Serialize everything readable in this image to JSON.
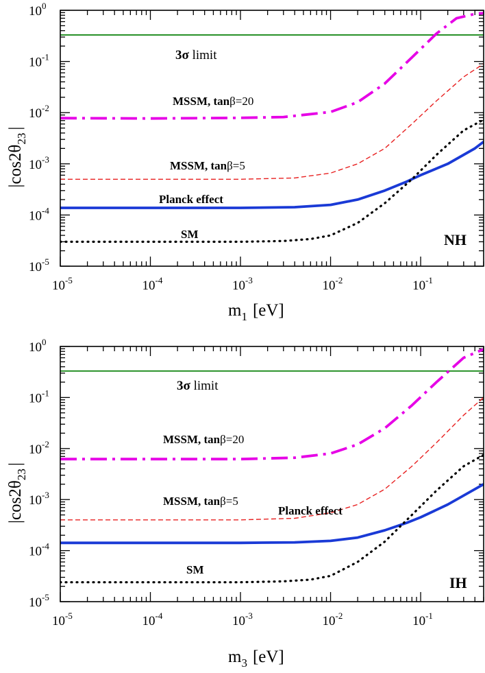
{
  "chart_data": [
    {
      "type": "line",
      "xscale": "log",
      "yscale": "log",
      "xlim": [
        1e-05,
        0.5
      ],
      "ylim": [
        1e-05,
        1
      ],
      "xlabel": {
        "main": "m",
        "sub": "1",
        "unit": "[eV]"
      },
      "ylabel": {
        "pre": "|cos2",
        "theta": "θ",
        "sub": "23",
        "post": "|"
      },
      "x_ticks": [
        {
          "base": "10",
          "exp": "-5"
        },
        {
          "base": "10",
          "exp": "-4"
        },
        {
          "base": "10",
          "exp": "-3"
        },
        {
          "base": "10",
          "exp": "-2"
        },
        {
          "base": "10",
          "exp": "-1"
        }
      ],
      "y_ticks": [
        {
          "base": "10",
          "exp": "-5"
        },
        {
          "base": "10",
          "exp": "-4"
        },
        {
          "base": "10",
          "exp": "-3"
        },
        {
          "base": "10",
          "exp": "-2"
        },
        {
          "base": "10",
          "exp": "-1"
        },
        {
          "base": "10",
          "exp": "0"
        }
      ],
      "tag": "NH",
      "limit": {
        "value": 0.33,
        "color": "#1a8a1a",
        "label_bold": "3σ",
        "label_rest": " limit"
      },
      "series": [
        {
          "key": "mssm20",
          "color": "#e600e6",
          "style": "dashdot",
          "width": 3.8,
          "x": [
            1e-05,
            0.0001,
            0.001,
            0.003,
            0.01,
            0.02,
            0.04,
            0.08,
            0.15,
            0.25,
            0.4,
            0.5
          ],
          "y": [
            0.0078,
            0.0077,
            0.0079,
            0.0082,
            0.0103,
            0.016,
            0.037,
            0.12,
            0.35,
            0.7,
            0.85,
            0.88
          ]
        },
        {
          "key": "mssm5",
          "color": "#e82020",
          "style": "dashed",
          "width": 1.4,
          "x": [
            1e-05,
            0.0001,
            0.001,
            0.004,
            0.01,
            0.02,
            0.04,
            0.08,
            0.15,
            0.3,
            0.5
          ],
          "y": [
            0.0005,
            0.0005,
            0.0005,
            0.00053,
            0.00066,
            0.001,
            0.002,
            0.006,
            0.017,
            0.05,
            0.09
          ]
        },
        {
          "key": "planck",
          "color": "#1a3ad6",
          "style": "solid",
          "width": 3.8,
          "x": [
            1e-05,
            0.0001,
            0.001,
            0.004,
            0.01,
            0.02,
            0.04,
            0.07,
            0.1,
            0.2,
            0.4,
            0.5
          ],
          "y": [
            0.000138,
            0.000138,
            0.000138,
            0.000142,
            0.000158,
            0.0002,
            0.0003,
            0.00045,
            0.0006,
            0.001,
            0.002,
            0.0027
          ]
        },
        {
          "key": "sm",
          "color": "#000000",
          "style": "dotted",
          "width": 3.2,
          "x": [
            1e-05,
            0.0001,
            0.001,
            0.003,
            0.006,
            0.01,
            0.02,
            0.04,
            0.08,
            0.15,
            0.3,
            0.5
          ],
          "y": [
            3e-05,
            3e-05,
            3e-05,
            3.1e-05,
            3.4e-05,
            4e-05,
            7e-05,
            0.00017,
            0.0005,
            0.0015,
            0.0045,
            0.0073
          ]
        }
      ],
      "annotations": [
        {
          "key": "mssm20",
          "bold": "MSSM, tan",
          "greek": "β",
          "rest": "=20"
        },
        {
          "key": "mssm5",
          "bold": "MSSM, tan",
          "greek": "β",
          "rest": "=5"
        },
        {
          "key": "planck",
          "bold": "Planck effect",
          "greek": "",
          "rest": ""
        },
        {
          "key": "sm",
          "bold": "SM",
          "greek": "",
          "rest": ""
        }
      ]
    },
    {
      "type": "line",
      "xscale": "log",
      "yscale": "log",
      "xlim": [
        1e-05,
        0.5
      ],
      "ylim": [
        1e-05,
        1
      ],
      "xlabel": {
        "main": "m",
        "sub": "3",
        "unit": "[eV]"
      },
      "ylabel": {
        "pre": "|cos2",
        "theta": "θ",
        "sub": "23",
        "post": "|"
      },
      "x_ticks": [
        {
          "base": "10",
          "exp": "-5"
        },
        {
          "base": "10",
          "exp": "-4"
        },
        {
          "base": "10",
          "exp": "-3"
        },
        {
          "base": "10",
          "exp": "-2"
        },
        {
          "base": "10",
          "exp": "-1"
        }
      ],
      "y_ticks": [
        {
          "base": "10",
          "exp": "-5"
        },
        {
          "base": "10",
          "exp": "-4"
        },
        {
          "base": "10",
          "exp": "-3"
        },
        {
          "base": "10",
          "exp": "-2"
        },
        {
          "base": "10",
          "exp": "-1"
        },
        {
          "base": "10",
          "exp": "0"
        }
      ],
      "tag": "IH",
      "limit": {
        "value": 0.33,
        "color": "#1a8a1a",
        "label_bold": "3σ",
        "label_rest": " limit"
      },
      "series": [
        {
          "key": "mssm20",
          "color": "#e600e6",
          "style": "dashdot",
          "width": 3.8,
          "x": [
            1e-05,
            0.0001,
            0.001,
            0.004,
            0.01,
            0.02,
            0.04,
            0.08,
            0.15,
            0.3,
            0.5
          ],
          "y": [
            0.0062,
            0.0062,
            0.0062,
            0.0066,
            0.008,
            0.012,
            0.025,
            0.07,
            0.2,
            0.6,
            0.88
          ]
        },
        {
          "key": "mssm5",
          "color": "#e82020",
          "style": "dashed",
          "width": 1.4,
          "x": [
            1e-05,
            0.0001,
            0.001,
            0.004,
            0.01,
            0.02,
            0.04,
            0.08,
            0.15,
            0.3,
            0.5
          ],
          "y": [
            0.0004,
            0.0004,
            0.0004,
            0.00043,
            0.00055,
            0.0008,
            0.0016,
            0.0045,
            0.013,
            0.045,
            0.1
          ]
        },
        {
          "key": "planck",
          "color": "#1a3ad6",
          "style": "solid",
          "width": 3.8,
          "x": [
            1e-05,
            0.0001,
            0.001,
            0.004,
            0.01,
            0.02,
            0.04,
            0.07,
            0.1,
            0.2,
            0.4,
            0.5
          ],
          "y": [
            0.000142,
            0.000142,
            0.000142,
            0.000145,
            0.000155,
            0.00018,
            0.00025,
            0.00035,
            0.00045,
            0.0008,
            0.0016,
            0.002
          ]
        },
        {
          "key": "sm",
          "color": "#000000",
          "style": "dotted",
          "width": 3.2,
          "x": [
            1e-05,
            0.0001,
            0.001,
            0.003,
            0.006,
            0.01,
            0.02,
            0.04,
            0.08,
            0.15,
            0.3,
            0.5
          ],
          "y": [
            2.4e-05,
            2.4e-05,
            2.4e-05,
            2.5e-05,
            2.7e-05,
            3.2e-05,
            6e-05,
            0.00015,
            0.0005,
            0.0015,
            0.0045,
            0.0075
          ]
        }
      ],
      "annotations": [
        {
          "key": "mssm20",
          "bold": "MSSM, tan",
          "greek": "β",
          "rest": "=20"
        },
        {
          "key": "mssm5",
          "bold": "MSSM, tan",
          "greek": "β",
          "rest": "=5"
        },
        {
          "key": "planck",
          "bold": "Planck effect",
          "greek": "",
          "rest": ""
        },
        {
          "key": "sm",
          "bold": "SM",
          "greek": "",
          "rest": ""
        }
      ]
    }
  ]
}
